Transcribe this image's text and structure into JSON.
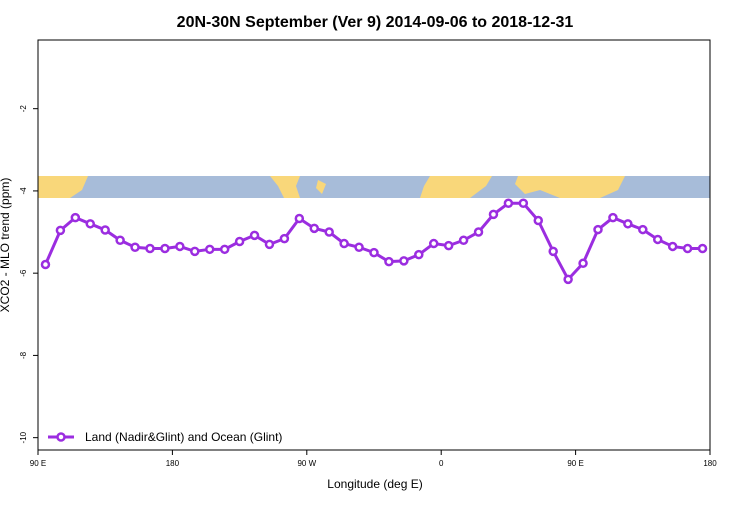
{
  "chart_data": {
    "type": "line",
    "title": "20N-30N September (Ver 9)   2014-09-06 to 2018-12-31",
    "x_label": "Longitude (deg E)",
    "y_label": "XCO2 - MLO trend (ppm)",
    "xlim": [
      90,
      540
    ],
    "xticks": [
      {
        "value": 90,
        "label": "90 E"
      },
      180,
      {
        "value": 270,
        "label": "90 W"
      },
      {
        "value": 360,
        "label": "0"
      },
      {
        "value": 450,
        "label": "90 E"
      },
      {
        "value": 540,
        "label": "180"
      }
    ],
    "ylim": [
      -10.3,
      -0.33
    ],
    "yticks": [
      -2,
      -4,
      -6,
      -8,
      -10
    ],
    "legend_position": "bottom-left",
    "x": [
      95,
      105,
      115,
      125,
      135,
      145,
      155,
      165,
      175,
      185,
      195,
      205,
      215,
      225,
      235,
      245,
      255,
      265,
      275,
      285,
      295,
      305,
      315,
      325,
      335,
      345,
      355,
      365,
      375,
      385,
      395,
      405,
      415,
      425,
      435,
      445,
      455,
      465,
      475,
      485,
      495,
      505,
      515,
      525,
      535
    ],
    "series": [
      {
        "name": "Land (Nadir&Glint) and Ocean (Glint)",
        "color": "#9b2de0",
        "values": [
          -5.79,
          -4.96,
          -4.65,
          -4.8,
          -4.95,
          -5.2,
          -5.37,
          -5.4,
          -5.4,
          -5.35,
          -5.47,
          -5.42,
          -5.42,
          -5.23,
          -5.08,
          -5.3,
          -5.16,
          -4.67,
          -4.91,
          -5.0,
          -5.28,
          -5.37,
          -5.5,
          -5.72,
          -5.7,
          -5.55,
          -5.28,
          -5.33,
          -5.2,
          -5.0,
          -4.57,
          -4.3,
          -4.3,
          -4.72,
          -5.47,
          -6.15,
          -5.76,
          -4.94,
          -4.65,
          -4.8,
          -4.94,
          -5.18,
          -5.35,
          -5.4,
          -5.4
        ]
      }
    ]
  }
}
